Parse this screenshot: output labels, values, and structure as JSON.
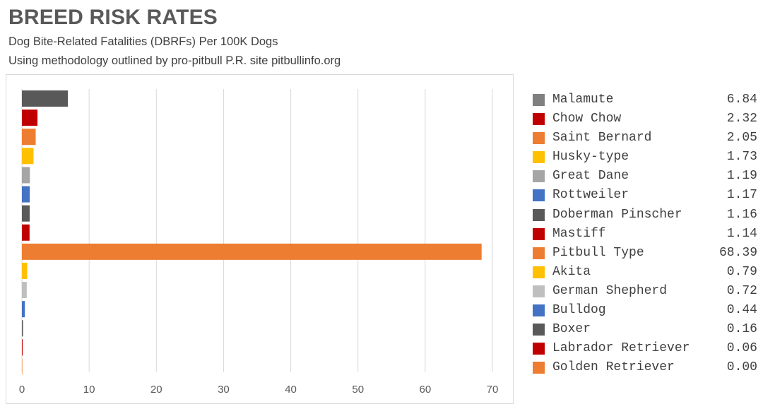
{
  "header": {
    "title": "BREED RISK RATES",
    "subtitle": "Dog Bite-Related Fatalities (DBRFs) Per 100K Dogs",
    "methodology": "Using methodology outlined by pro-pitbull P.R. site pitbullinfo.org"
  },
  "chart_data": {
    "type": "bar",
    "orientation": "horizontal",
    "title": "BREED RISK RATES",
    "xlabel": "",
    "ylabel": "",
    "xlim": [
      0,
      70
    ],
    "xticks": [
      0,
      10,
      20,
      30,
      40,
      50,
      60,
      70
    ],
    "grid": true,
    "legend_position": "right",
    "categories": [
      "Malamute",
      "Chow Chow",
      "Saint Bernard",
      "Husky-type",
      "Great Dane",
      "Rottweiler",
      "Doberman Pinscher",
      "Mastiff",
      "Pitbull Type",
      "Akita",
      "German Shepherd",
      "Bulldog",
      "Boxer",
      "Labrador Retriever",
      "Golden Retriever"
    ],
    "values": [
      6.84,
      2.32,
      2.05,
      1.73,
      1.19,
      1.17,
      1.16,
      1.14,
      68.39,
      0.79,
      0.72,
      0.44,
      0.16,
      0.06,
      0.0
    ],
    "value_labels": [
      "6.84",
      "2.32",
      "2.05",
      "1.73",
      "1.19",
      "1.17",
      "1.16",
      "1.14",
      "68.39",
      "0.79",
      "0.72",
      "0.44",
      "0.16",
      "0.06",
      "0.00"
    ],
    "colors": [
      "#595959",
      "#c00000",
      "#ed7d31",
      "#ffc000",
      "#a5a5a5",
      "#4472c4",
      "#595959",
      "#c00000",
      "#ed7d31",
      "#ffc000",
      "#bfbfbf",
      "#4472c4",
      "#595959",
      "#c00000",
      "#ed7d31"
    ],
    "legend_colors": [
      "#808080",
      "#c00000",
      "#ed7d31",
      "#ffc000",
      "#a5a5a5",
      "#4472c4",
      "#595959",
      "#c00000",
      "#ed7d31",
      "#ffc000",
      "#bfbfbf",
      "#4472c4",
      "#595959",
      "#c00000",
      "#ed7d31"
    ]
  }
}
